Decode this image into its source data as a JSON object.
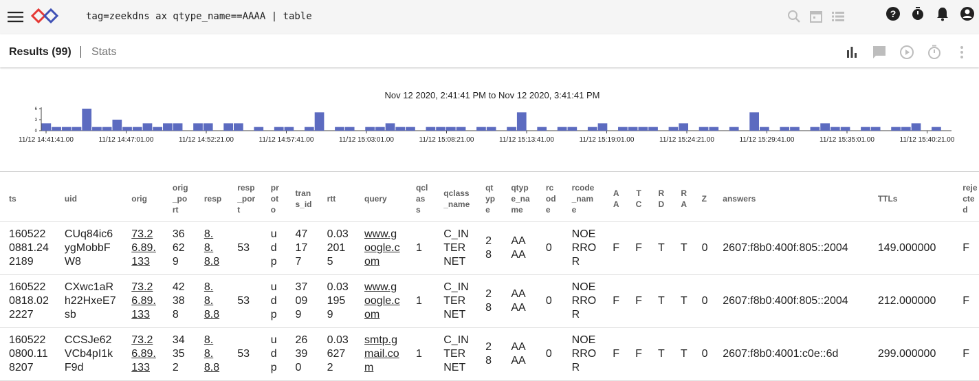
{
  "topbar": {
    "query": "tag=zeekdns ax qtype_name==AAAA | table",
    "icons": [
      "menu-icon",
      "gravwell-logo",
      "search-icon",
      "calendar-icon",
      "list-icon",
      "help-icon",
      "timer-icon",
      "bell-icon",
      "account-icon"
    ]
  },
  "results": {
    "results_label": "Results (99)",
    "stats_label": "Stats",
    "icons": [
      "bar-chart-icon",
      "comment-icon",
      "play-icon",
      "stopwatch-icon",
      "more-vert-icon"
    ]
  },
  "chart_data": {
    "type": "bar",
    "title": "Nov 12 2020, 2:41:41 PM to Nov 12 2020, 3:41:41 PM",
    "color": "#5c6bc0",
    "yticks": [
      "6",
      "3",
      "0"
    ],
    "ylim": [
      0,
      6
    ],
    "xticks": [
      "11/12 14:41:41.00",
      "11/12 14:47:01.00",
      "11/12 14:52:21.00",
      "11/12 14:57:41.00",
      "11/12 15:03:01.00",
      "11/12 15:08:21.00",
      "11/12 15:13:41.00",
      "11/12 15:19:01.00",
      "11/12 15:24:21.00",
      "11/12 15:29:41.00",
      "11/12 15:35:01.00",
      "11/12 15:40:21.00"
    ],
    "values": [
      2,
      1,
      1,
      1,
      6,
      1,
      1,
      3,
      1,
      1,
      2,
      1,
      2,
      2,
      0,
      2,
      2,
      0,
      2,
      2,
      0,
      1,
      0,
      1,
      1,
      0,
      1,
      5,
      0,
      1,
      1,
      0,
      1,
      1,
      2,
      1,
      1,
      0,
      1,
      1,
      1,
      1,
      0,
      1,
      1,
      0,
      1,
      5,
      0,
      1,
      0,
      1,
      1,
      0,
      1,
      2,
      0,
      1,
      1,
      1,
      1,
      0,
      1,
      2,
      0,
      1,
      1,
      0,
      1,
      0,
      5,
      1,
      0,
      1,
      1,
      0,
      1,
      2,
      1,
      1,
      0,
      1,
      1,
      0,
      1,
      1,
      2,
      0,
      1,
      0
    ],
    "value_comment": "one bar per ~40 second interval across the hour"
  },
  "table": {
    "columns": [
      "ts",
      "uid",
      "orig",
      "orig\n_po\nrt",
      "resp",
      "resp\n_por\nt",
      "pr\not\no",
      "tran\ns_id",
      "rtt",
      "query",
      "qcl\nas\ns",
      "qclass\n_name",
      "qt\nyp\ne",
      "qtyp\ne_na\nme",
      "rc\nod\ne",
      "rcode\n_nam\ne",
      "A\nA",
      "T\nC",
      "R\nD",
      "R\nA",
      "Z",
      "answers",
      "TTLs",
      "reje\ncte\nd"
    ],
    "rows": [
      [
        "160522\n0881.24\n2189",
        "CUq84ic6\nygMobbF\nW8",
        "73.2\n6.89.\n133",
        "36\n62\n9",
        "8.\n8.\n8.8",
        "53",
        "u\nd\np",
        "47\n17\n7",
        "0.03\n201\n5",
        "www.g\noogle.c\nom",
        "1",
        "C_IN\nTER\nNET",
        "2\n8",
        "AA\nAA",
        "0",
        "NOE\nRRO\nR",
        "F",
        "F",
        "T",
        "T",
        "0",
        "2607:f8b0:400f:805::2004",
        "149.000000",
        "F"
      ],
      [
        "160522\n0818.02\n2227",
        "CXwc1aR\nh22HxeE7\nsb",
        "73.2\n6.89.\n133",
        "42\n38\n8",
        "8.\n8.\n8.8",
        "53",
        "u\nd\np",
        "37\n09\n9",
        "0.03\n195\n9",
        "www.g\noogle.c\nom",
        "1",
        "C_IN\nTER\nNET",
        "2\n8",
        "AA\nAA",
        "0",
        "NOE\nRRO\nR",
        "F",
        "F",
        "T",
        "T",
        "0",
        "2607:f8b0:400f:805::2004",
        "212.000000",
        "F"
      ],
      [
        "160522\n0800.11\n8207",
        "CCSJe62\nVCb4pI1k\nF9d",
        "73.2\n6.89.\n133",
        "34\n35\n2",
        "8.\n8.\n8.8",
        "53",
        "u\nd\np",
        "26\n39\n0",
        "0.03\n627\n2",
        "smtp.g\nmail.co\nm",
        "1",
        "C_IN\nTER\nNET",
        "2\n8",
        "AA\nAA",
        "0",
        "NOE\nRRO\nR",
        "F",
        "F",
        "T",
        "T",
        "0",
        "2607:f8b0:4001:c0e::6d",
        "299.000000",
        "F"
      ]
    ]
  }
}
